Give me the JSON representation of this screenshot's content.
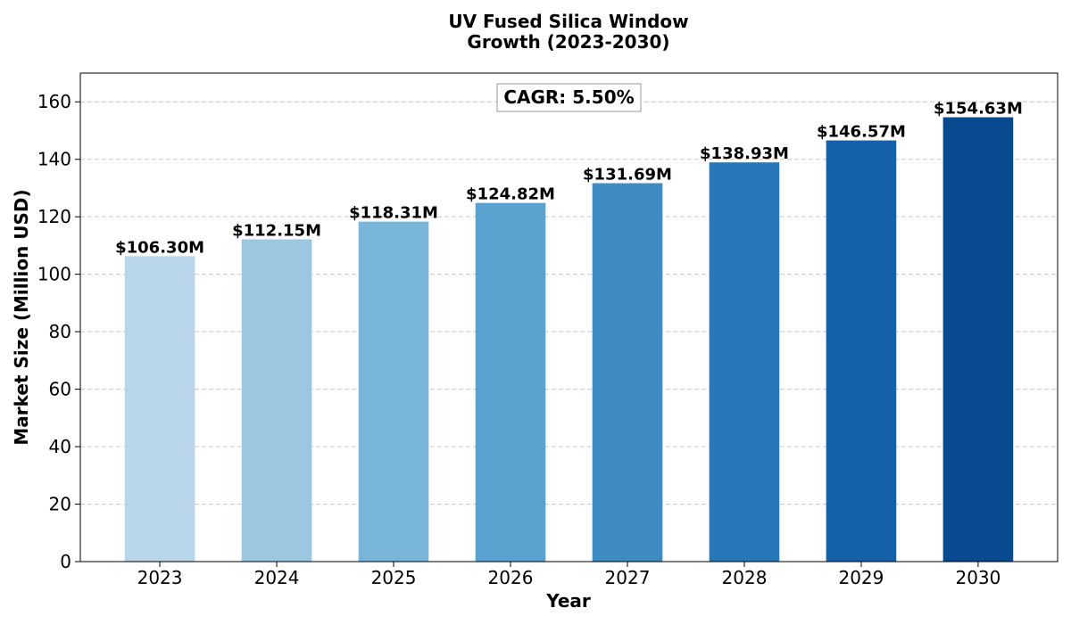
{
  "chart_data": {
    "type": "bar",
    "title_line1": "UV Fused Silica Window",
    "title_line2": "Growth (2023-2030)",
    "xlabel": "Year",
    "ylabel": "Market Size (Million USD)",
    "categories": [
      "2023",
      "2024",
      "2025",
      "2026",
      "2027",
      "2028",
      "2029",
      "2030"
    ],
    "values": [
      106.3,
      112.15,
      118.31,
      124.82,
      131.69,
      138.93,
      146.57,
      154.63
    ],
    "data_labels": [
      "$106.30M",
      "$112.15M",
      "$118.31M",
      "$124.82M",
      "$131.69M",
      "$138.93M",
      "$146.57M",
      "$154.63M"
    ],
    "bar_colors": [
      "#b9d5ea",
      "#9bc8e0",
      "#79b5d8",
      "#5aa2cf",
      "#3f8bc4",
      "#2878b9",
      "#1461aa",
      "#08498f"
    ],
    "ylim": [
      0,
      170
    ],
    "yticks": [
      0,
      20,
      40,
      60,
      80,
      100,
      120,
      140,
      160
    ],
    "grid": "y-dashed",
    "annotation": "CAGR: 5.50%"
  }
}
